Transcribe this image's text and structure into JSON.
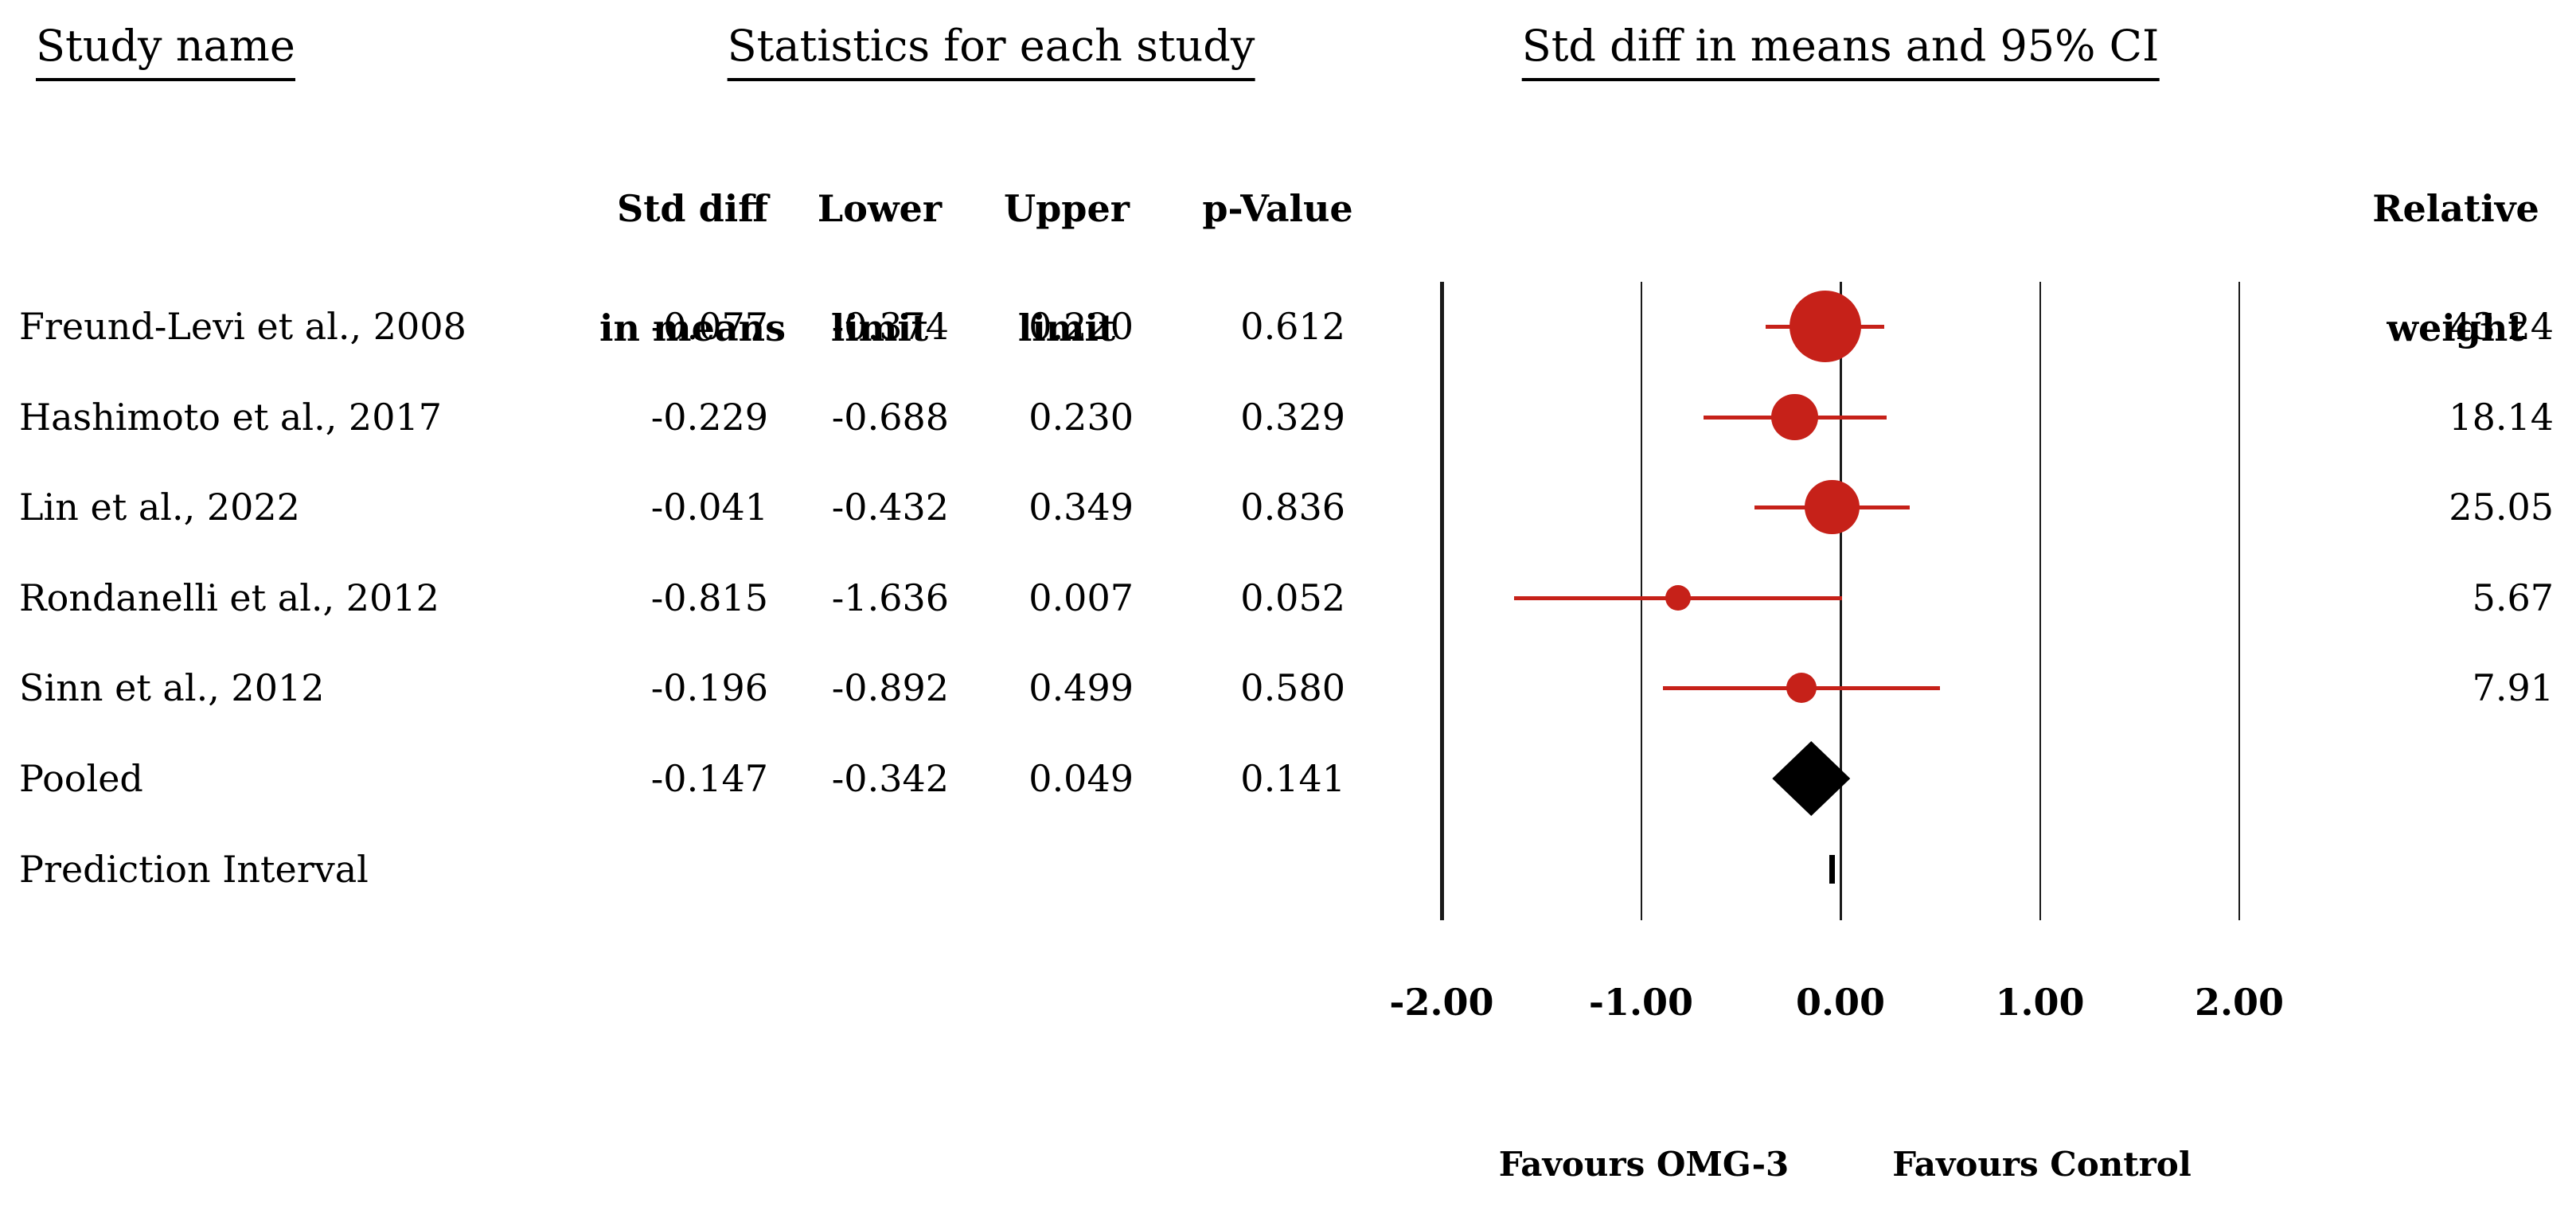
{
  "headers": {
    "study_name": "Study name",
    "statistics": "Statistics for each study",
    "plot": "Std diff in means and 95% CI"
  },
  "columns": {
    "std_diff": {
      "line1": "Std diff",
      "line2": "in means"
    },
    "lower": {
      "line1": "Lower",
      "line2": "limit"
    },
    "upper": {
      "line1": "Upper",
      "line2": "limit"
    },
    "p_value": {
      "line1": "p-Value"
    },
    "weight": {
      "line1": "Relative",
      "line2": "weight"
    }
  },
  "rows": [
    {
      "type": "study",
      "label": "Freund-Levi et al., 2008",
      "std_diff": "-0.077",
      "lower": "-0.374",
      "upper": "0.220",
      "p_value": "0.612",
      "weight": "43.24",
      "mean": -0.077,
      "ci_low": -0.374,
      "ci_high": 0.22,
      "weight_pct": 43.24
    },
    {
      "type": "study",
      "label": "Hashimoto et al., 2017",
      "std_diff": "-0.229",
      "lower": "-0.688",
      "upper": "0.230",
      "p_value": "0.329",
      "weight": "18.14",
      "mean": -0.229,
      "ci_low": -0.688,
      "ci_high": 0.23,
      "weight_pct": 18.14
    },
    {
      "type": "study",
      "label": "Lin et al., 2022",
      "std_diff": "-0.041",
      "lower": "-0.432",
      "upper": "0.349",
      "p_value": "0.836",
      "weight": "25.05",
      "mean": -0.041,
      "ci_low": -0.432,
      "ci_high": 0.349,
      "weight_pct": 25.05
    },
    {
      "type": "study",
      "label": "Rondanelli et al., 2012",
      "std_diff": "-0.815",
      "lower": "-1.636",
      "upper": "0.007",
      "p_value": "0.052",
      "weight": "5.67",
      "mean": -0.815,
      "ci_low": -1.636,
      "ci_high": 0.007,
      "weight_pct": 5.67
    },
    {
      "type": "study",
      "label": "Sinn et al., 2012",
      "std_diff": "-0.196",
      "lower": "-0.892",
      "upper": "0.499",
      "p_value": "0.580",
      "weight": "7.91",
      "mean": -0.196,
      "ci_low": -0.892,
      "ci_high": 0.499,
      "weight_pct": 7.91
    },
    {
      "type": "pooled",
      "label": "Pooled",
      "std_diff": "-0.147",
      "lower": "-0.342",
      "upper": "0.049",
      "p_value": "0.141",
      "weight": "",
      "mean": -0.147,
      "ci_low": -0.342,
      "ci_high": 0.049
    },
    {
      "type": "prediction",
      "label": "Prediction Interval",
      "std_diff": "",
      "lower": "",
      "upper": "",
      "p_value": "",
      "weight": ""
    }
  ],
  "axis": {
    "tick_values": [
      -2,
      -1,
      0,
      1,
      2
    ],
    "tick_labels": [
      "-2.00",
      "-1.00",
      "0.00",
      "1.00",
      "2.00"
    ]
  },
  "footer": {
    "favours_left": "Favours OMG-3",
    "favours_right": "Favours Control"
  },
  "colors": {
    "marker_red": "#C62119",
    "pooled_black": "#000000"
  },
  "chart_data": {
    "type": "scatter",
    "subtype": "forest_plot",
    "title": "Std diff in means and 95% CI",
    "xlabel_left": "Favours OMG-3",
    "xlabel_right": "Favours Control",
    "xlim": [
      -2.0,
      2.0
    ],
    "x_ticks": [
      -2.0,
      -1.0,
      0.0,
      1.0,
      2.0
    ],
    "effect_measure": "Std diff in means",
    "studies": [
      "Freund-Levi et al., 2008",
      "Hashimoto et al., 2017",
      "Lin et al., 2022",
      "Rondanelli et al., 2012",
      "Sinn et al., 2012"
    ],
    "series": [
      {
        "name": "Freund-Levi et al., 2008",
        "std_diff_in_means": -0.077,
        "lower_limit": -0.374,
        "upper_limit": 0.22,
        "p_value": 0.612,
        "relative_weight": 43.24
      },
      {
        "name": "Hashimoto et al., 2017",
        "std_diff_in_means": -0.229,
        "lower_limit": -0.688,
        "upper_limit": 0.23,
        "p_value": 0.329,
        "relative_weight": 18.14
      },
      {
        "name": "Lin et al., 2022",
        "std_diff_in_means": -0.041,
        "lower_limit": -0.432,
        "upper_limit": 0.349,
        "p_value": 0.836,
        "relative_weight": 25.05
      },
      {
        "name": "Rondanelli et al., 2012",
        "std_diff_in_means": -0.815,
        "lower_limit": -1.636,
        "upper_limit": 0.007,
        "p_value": 0.052,
        "relative_weight": 5.67
      },
      {
        "name": "Sinn et al., 2012",
        "std_diff_in_means": -0.196,
        "lower_limit": -0.892,
        "upper_limit": 0.499,
        "p_value": 0.58,
        "relative_weight": 7.91
      },
      {
        "name": "Pooled",
        "std_diff_in_means": -0.147,
        "lower_limit": -0.342,
        "upper_limit": 0.049,
        "p_value": 0.141,
        "marker": "diamond"
      },
      {
        "name": "Prediction Interval",
        "marker": "narrow_bar_near_zero"
      }
    ],
    "legend_position": "none",
    "grid": "vertical_lines_at_ticks"
  }
}
